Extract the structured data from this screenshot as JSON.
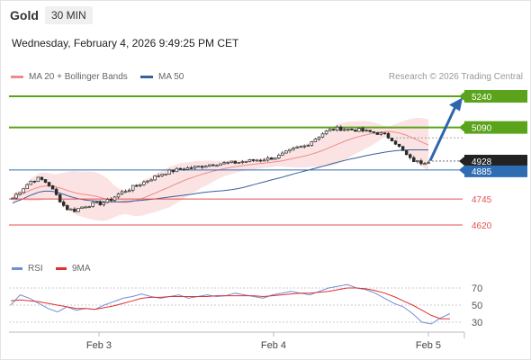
{
  "header": {
    "title": "Gold",
    "timeframe": "30 MIN",
    "datetime": "Wednesday, February 4, 2026 9:49:25 PM CET"
  },
  "legend": {
    "ma20_label": "MA 20 + Bollinger Bands",
    "ma50_label": "MA 50",
    "credit": "Research © 2026 Trading Central"
  },
  "rsi_legend": {
    "rsi_label": "RSI",
    "ma_label": "9MA"
  },
  "colors": {
    "green": "#5aa31b",
    "blue": "#2f6db3",
    "red_line": "#e25050",
    "band_fill": "#fadada",
    "ma20": "#f08a8a",
    "ma50": "#3a5f9b",
    "candle": "#2c2c2c",
    "arrow": "#2e66ad",
    "rsi": "#6f8fd6",
    "rsi_ma": "#e23030",
    "price_tag": "#222222"
  },
  "chart_data": {
    "type": "candlestick",
    "instrument": "Gold",
    "timeframe": "30 MIN",
    "y_range": [
      4545,
      5300
    ],
    "x_ticks": [
      "Feb 3",
      "Feb 4",
      "Feb 5"
    ],
    "current_price": "4928",
    "levels": [
      {
        "value": 5240,
        "label": "5240",
        "kind": "resistance",
        "color": "#5aa31b"
      },
      {
        "value": 5090,
        "label": "5090",
        "kind": "resistance",
        "color": "#5aa31b"
      },
      {
        "value": 4885,
        "label": "4885",
        "kind": "pivot",
        "color": "#2f6db3"
      },
      {
        "value": 4745,
        "label": "4745",
        "kind": "support",
        "color": "#e25050"
      },
      {
        "value": 4620,
        "label": "4620",
        "kind": "support",
        "color": "#e25050"
      }
    ],
    "price_path": [
      4750,
      4790,
      4830,
      4845,
      4820,
      4760,
      4700,
      4690,
      4710,
      4720,
      4725,
      4740,
      4770,
      4790,
      4810,
      4830,
      4850,
      4870,
      4880,
      4890,
      4895,
      4900,
      4910,
      4915,
      4918,
      4920,
      4925,
      4930,
      4935,
      4940,
      4950,
      4970,
      4990,
      5000,
      5030,
      5060,
      5080,
      5085,
      5080,
      5078,
      5070,
      5065,
      5055,
      5030,
      4980,
      4935,
      4920,
      4928
    ],
    "rsi": {
      "y_ticks": [
        70,
        50,
        30
      ],
      "y_range": [
        20,
        80
      ],
      "values": [
        50,
        62,
        58,
        52,
        46,
        42,
        48,
        44,
        46,
        45,
        50,
        54,
        58,
        60,
        63,
        60,
        58,
        60,
        62,
        58,
        60,
        62,
        60,
        61,
        64,
        62,
        60,
        58,
        62,
        64,
        66,
        64,
        62,
        66,
        70,
        72,
        74,
        70,
        68,
        64,
        58,
        52,
        48,
        40,
        30,
        28,
        35,
        40
      ],
      "ma": [
        55,
        56,
        55,
        54,
        52,
        50,
        48,
        46,
        46,
        45,
        47,
        49,
        52,
        55,
        58,
        59,
        59,
        60,
        60,
        60,
        60,
        60,
        61,
        61,
        61,
        61,
        61,
        60,
        61,
        62,
        63,
        64,
        64,
        65,
        66,
        68,
        70,
        70,
        69,
        67,
        64,
        60,
        55,
        50,
        44,
        38,
        34,
        34
      ]
    }
  }
}
